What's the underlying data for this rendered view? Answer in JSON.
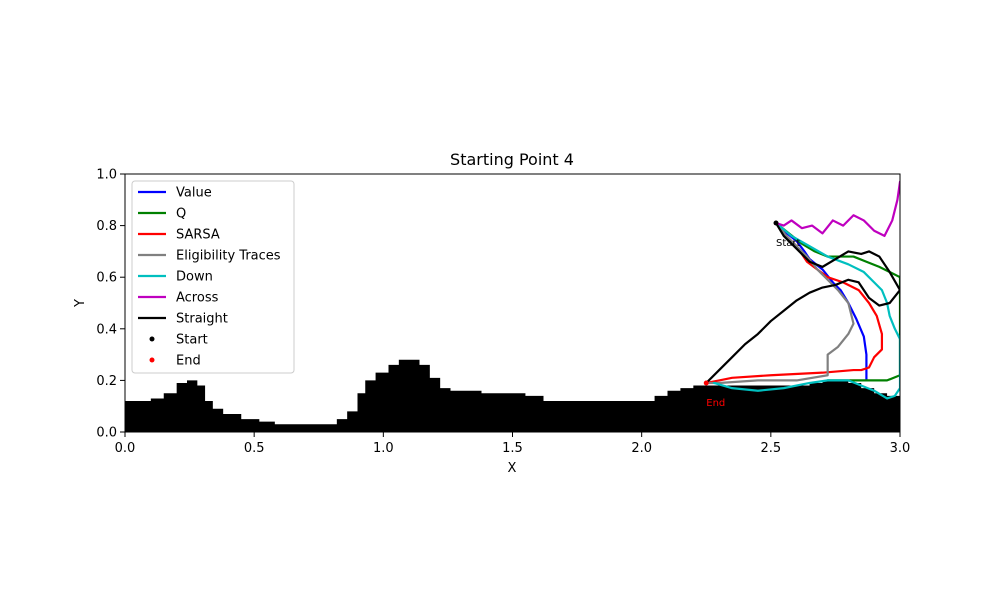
{
  "chart_data": {
    "type": "line",
    "title": "Starting Point 4",
    "xlabel": "X",
    "ylabel": "Y",
    "xlim": [
      0.0,
      3.0
    ],
    "ylim": [
      0.0,
      1.0
    ],
    "xticks": [
      0.0,
      0.5,
      1.0,
      1.5,
      2.0,
      2.5,
      3.0
    ],
    "xtick_labels": [
      "0.0",
      "0.5",
      "1.0",
      "1.5",
      "2.0",
      "2.5",
      "3.0"
    ],
    "yticks": [
      0.0,
      0.2,
      0.4,
      0.6,
      0.8,
      1.0
    ],
    "ytick_labels": [
      "0.0",
      "0.2",
      "0.4",
      "0.6",
      "0.8",
      "1.0"
    ],
    "grid": false,
    "legend_position": "upper-left",
    "terrain": {
      "color": "#000000",
      "x": [
        0.0,
        0.06,
        0.1,
        0.15,
        0.2,
        0.24,
        0.28,
        0.31,
        0.34,
        0.38,
        0.45,
        0.52,
        0.58,
        0.65,
        0.75,
        0.82,
        0.86,
        0.9,
        0.93,
        0.97,
        1.02,
        1.06,
        1.1,
        1.14,
        1.18,
        1.22,
        1.26,
        1.32,
        1.38,
        1.45,
        1.5,
        1.55,
        1.62,
        1.75,
        1.9,
        2.0,
        2.05,
        2.1,
        2.15,
        2.2,
        2.25,
        2.35,
        2.5,
        2.6,
        2.65,
        2.7,
        2.75,
        2.8,
        2.85,
        2.9,
        2.95,
        3.0
      ],
      "y": [
        0.12,
        0.12,
        0.13,
        0.15,
        0.19,
        0.2,
        0.18,
        0.12,
        0.09,
        0.07,
        0.05,
        0.04,
        0.03,
        0.03,
        0.03,
        0.05,
        0.08,
        0.15,
        0.2,
        0.23,
        0.26,
        0.28,
        0.28,
        0.26,
        0.21,
        0.17,
        0.16,
        0.16,
        0.15,
        0.15,
        0.15,
        0.14,
        0.12,
        0.12,
        0.12,
        0.12,
        0.14,
        0.16,
        0.17,
        0.18,
        0.18,
        0.18,
        0.18,
        0.18,
        0.19,
        0.2,
        0.2,
        0.19,
        0.17,
        0.15,
        0.14,
        0.14
      ]
    },
    "series": [
      {
        "name": "Value",
        "color": "#0000ff",
        "x": [
          2.52,
          2.55,
          2.6,
          2.63,
          2.65,
          2.7,
          2.74,
          2.77,
          2.8,
          2.83,
          2.86,
          2.87,
          2.87,
          2.87
        ],
        "y": [
          0.81,
          0.78,
          0.74,
          0.7,
          0.67,
          0.63,
          0.58,
          0.55,
          0.5,
          0.44,
          0.37,
          0.3,
          0.26,
          0.2
        ]
      },
      {
        "name": "Q",
        "color": "#008000",
        "x": [
          2.52,
          2.57,
          2.62,
          2.67,
          2.72,
          2.77,
          2.82,
          2.87,
          2.92,
          2.96,
          3.0,
          3.0,
          2.95,
          2.85,
          2.75,
          2.72
        ],
        "y": [
          0.81,
          0.77,
          0.73,
          0.7,
          0.68,
          0.68,
          0.68,
          0.66,
          0.64,
          0.62,
          0.6,
          0.22,
          0.2,
          0.2,
          0.2,
          0.2
        ]
      },
      {
        "name": "SARSA",
        "color": "#ff0000",
        "x": [
          2.52,
          2.56,
          2.6,
          2.64,
          2.68,
          2.72,
          2.78,
          2.84,
          2.88,
          2.91,
          2.93,
          2.93,
          2.9,
          2.88,
          2.85,
          2.82,
          2.7,
          2.5,
          2.35,
          2.3,
          2.25
        ],
        "y": [
          0.81,
          0.76,
          0.72,
          0.66,
          0.63,
          0.6,
          0.58,
          0.55,
          0.5,
          0.45,
          0.38,
          0.32,
          0.29,
          0.25,
          0.24,
          0.24,
          0.23,
          0.22,
          0.21,
          0.2,
          0.19
        ]
      },
      {
        "name": "Eligibility Traces",
        "color": "#808080",
        "x": [
          2.52,
          2.56,
          2.6,
          2.64,
          2.68,
          2.72,
          2.76,
          2.8,
          2.82,
          2.8,
          2.76,
          2.72,
          2.72,
          2.6,
          2.45,
          2.3,
          2.25
        ],
        "y": [
          0.81,
          0.76,
          0.72,
          0.68,
          0.63,
          0.59,
          0.55,
          0.5,
          0.42,
          0.38,
          0.33,
          0.3,
          0.22,
          0.2,
          0.2,
          0.19,
          0.19
        ]
      },
      {
        "name": "Down",
        "color": "#00bfbf",
        "x": [
          2.52,
          2.58,
          2.65,
          2.72,
          2.8,
          2.86,
          2.9,
          2.93,
          2.95,
          2.96,
          2.98,
          3.0,
          3.0,
          2.98,
          2.95,
          2.9,
          2.8,
          2.72,
          2.65,
          2.55,
          2.45,
          2.35,
          2.28
        ],
        "y": [
          0.81,
          0.76,
          0.72,
          0.68,
          0.65,
          0.62,
          0.58,
          0.55,
          0.5,
          0.45,
          0.4,
          0.36,
          0.17,
          0.14,
          0.13,
          0.16,
          0.2,
          0.2,
          0.19,
          0.17,
          0.16,
          0.17,
          0.19
        ]
      },
      {
        "name": "Across",
        "color": "#bf00bf",
        "x": [
          2.52,
          2.55,
          2.58,
          2.62,
          2.66,
          2.7,
          2.74,
          2.78,
          2.82,
          2.86,
          2.9,
          2.94,
          2.97,
          2.99,
          3.0
        ],
        "y": [
          0.81,
          0.8,
          0.82,
          0.79,
          0.8,
          0.77,
          0.82,
          0.8,
          0.84,
          0.82,
          0.78,
          0.76,
          0.82,
          0.9,
          0.97
        ]
      },
      {
        "name": "Straight",
        "color": "#000000",
        "x": [
          2.25,
          2.3,
          2.35,
          2.4,
          2.45,
          2.5,
          2.55,
          2.6,
          2.65,
          2.7,
          2.75,
          2.8,
          2.84,
          2.88,
          2.92,
          2.96,
          3.0,
          2.96,
          2.92,
          2.88,
          2.85,
          2.8,
          2.75,
          2.7,
          2.65,
          2.6,
          2.55,
          2.52
        ],
        "y": [
          0.19,
          0.24,
          0.29,
          0.34,
          0.38,
          0.43,
          0.47,
          0.51,
          0.54,
          0.56,
          0.57,
          0.59,
          0.58,
          0.52,
          0.49,
          0.5,
          0.55,
          0.62,
          0.68,
          0.7,
          0.69,
          0.7,
          0.67,
          0.64,
          0.66,
          0.71,
          0.76,
          0.81
        ]
      }
    ],
    "start": {
      "label": "Start",
      "color": "#000000",
      "x": 2.52,
      "y": 0.81
    },
    "end": {
      "label": "End",
      "color": "#ff0000",
      "x": 2.25,
      "y": 0.19
    },
    "annotations": [
      {
        "text": "Start",
        "x": 2.52,
        "y": 0.72,
        "color": "#000000"
      },
      {
        "text": "End",
        "x": 2.25,
        "y": 0.1,
        "color": "#ff0000"
      }
    ],
    "legend": [
      {
        "label": "Value",
        "color": "#0000ff",
        "kind": "line"
      },
      {
        "label": "Q",
        "color": "#008000",
        "kind": "line"
      },
      {
        "label": "SARSA",
        "color": "#ff0000",
        "kind": "line"
      },
      {
        "label": "Eligibility Traces",
        "color": "#808080",
        "kind": "line"
      },
      {
        "label": "Down",
        "color": "#00bfbf",
        "kind": "line"
      },
      {
        "label": "Across",
        "color": "#bf00bf",
        "kind": "line"
      },
      {
        "label": "Straight",
        "color": "#000000",
        "kind": "line"
      },
      {
        "label": "Start",
        "color": "#000000",
        "kind": "dot"
      },
      {
        "label": "End",
        "color": "#ff0000",
        "kind": "dot"
      }
    ]
  }
}
